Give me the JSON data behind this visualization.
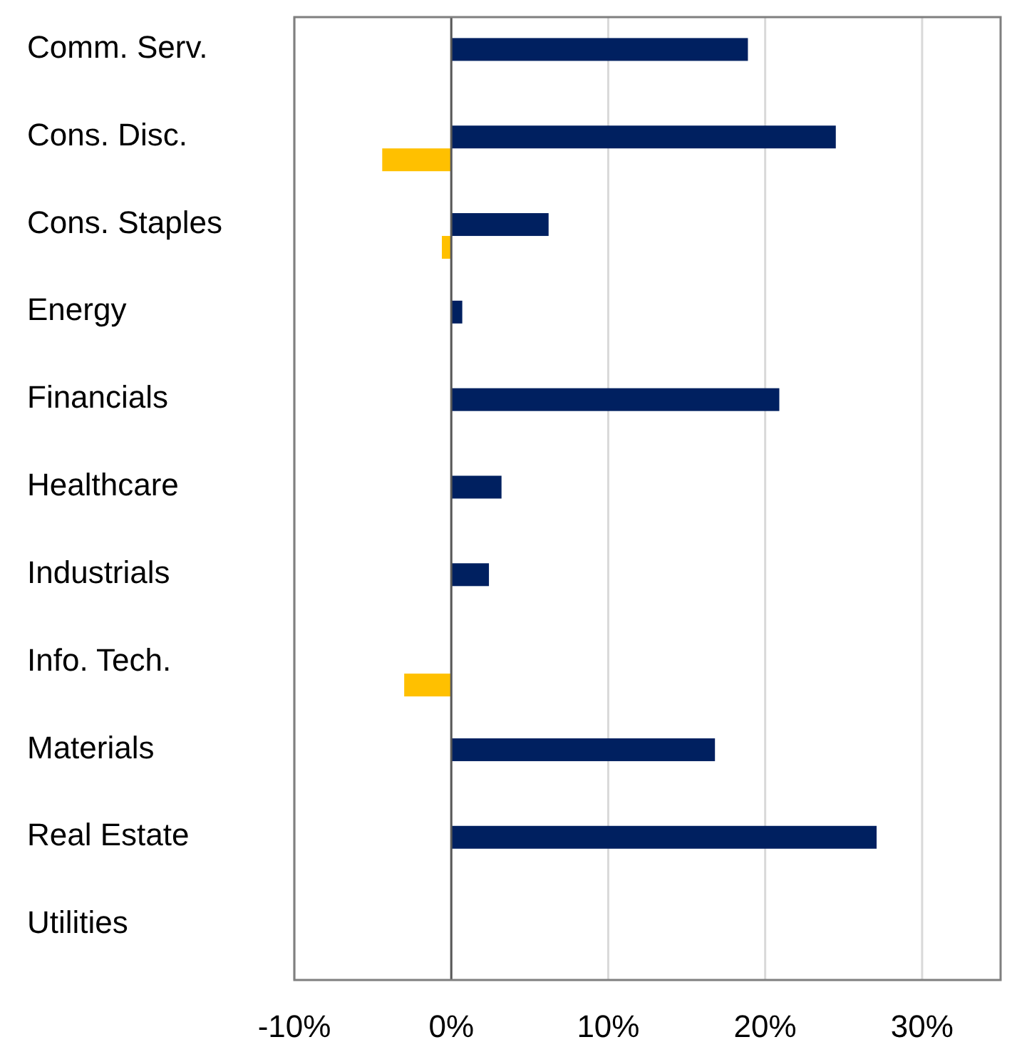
{
  "chart_data": {
    "type": "bar",
    "orientation": "horizontal",
    "categories": [
      "Comm. Serv.",
      "Cons. Disc.",
      "Cons. Staples",
      "Energy",
      "Financials",
      "Healthcare",
      "Industrials",
      "Info. Tech.",
      "Materials",
      "Real Estate",
      "Utilities"
    ],
    "series": [
      {
        "color": "#002060",
        "values": [
          18.9,
          24.5,
          6.2,
          0.7,
          20.9,
          3.2,
          2.4,
          null,
          16.8,
          27.1,
          null
        ]
      },
      {
        "color": "#ffc000",
        "values": [
          null,
          -4.4,
          -0.6,
          null,
          null,
          null,
          null,
          -3.0,
          null,
          null,
          null
        ]
      }
    ],
    "xlim": [
      -10,
      35
    ],
    "xticks": [
      {
        "value": -10,
        "label": "-10%"
      },
      {
        "value": 0,
        "label": "0%"
      },
      {
        "value": 10,
        "label": "10%"
      },
      {
        "value": 20,
        "label": "20%"
      },
      {
        "value": 30,
        "label": "30%"
      }
    ],
    "grid": "x"
  }
}
